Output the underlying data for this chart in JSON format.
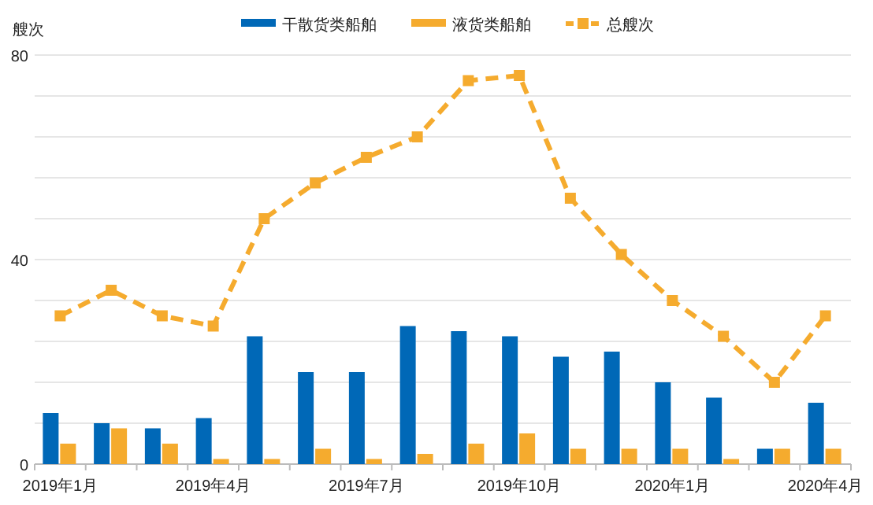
{
  "chart_data": {
    "type": "bar",
    "ylabel": "艘次",
    "legend": "top",
    "grid": "y",
    "categories": [
      "2019年1月",
      null,
      null,
      "2019年4月",
      null,
      null,
      "2019年7月",
      null,
      null,
      "2019年10月",
      null,
      null,
      "2020年1月",
      null,
      null,
      "2020年4月"
    ],
    "ylim": [
      0,
      80
    ],
    "yticks": [
      0,
      {
        "value": 8,
        "label": null
      },
      {
        "value": 16,
        "label": null
      },
      {
        "value": 24,
        "label": null
      },
      {
        "value": 32,
        "label": null
      },
      40,
      {
        "value": 48,
        "label": null
      },
      {
        "value": 56,
        "label": null
      },
      {
        "value": 64,
        "label": null
      },
      {
        "value": 72,
        "label": null
      },
      80
    ],
    "series": [
      {
        "name": "干散货类船舶",
        "type": "bar",
        "color": "#0068b7",
        "values": [
          10,
          8,
          7,
          9,
          25,
          18,
          18,
          27,
          26,
          25,
          21,
          22,
          16,
          13,
          3,
          12
        ]
      },
      {
        "name": "液货类船舶",
        "type": "bar",
        "color": "#f5ab2e",
        "values": [
          4,
          7,
          4,
          1,
          1,
          3,
          1,
          2,
          4,
          6,
          3,
          3,
          3,
          1,
          3,
          3
        ]
      },
      {
        "name": "总艘次",
        "type": "line",
        "color": "#f5ab2e",
        "line_style": "dashed",
        "marker": "square",
        "values": [
          29,
          34,
          29,
          27,
          48,
          55,
          60,
          64,
          75,
          76,
          52,
          41,
          32,
          25,
          16,
          29
        ]
      }
    ]
  }
}
